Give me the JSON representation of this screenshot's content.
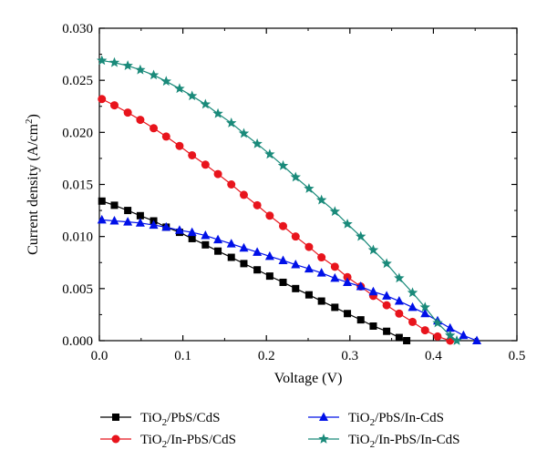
{
  "chart_data": {
    "type": "line",
    "title": "",
    "xlabel": "Voltage (V)",
    "ylabel": {
      "main": "Current density (A/cm",
      "sup": "2",
      "end": ")"
    },
    "xlim": [
      0,
      0.5
    ],
    "ylim": [
      0,
      0.03
    ],
    "xticks": [
      0,
      0.1,
      0.2,
      0.3,
      0.4,
      0.5
    ],
    "xtick_labels": [
      "0.0",
      "0.1",
      "0.2",
      "0.3",
      "0.4",
      "0.5"
    ],
    "yticks": [
      0,
      0.005,
      0.01,
      0.015,
      0.02,
      0.025,
      0.03
    ],
    "ytick_labels": [
      "0.000",
      "0.005",
      "0.010",
      "0.015",
      "0.020",
      "0.025",
      "0.030"
    ],
    "grid": false,
    "legend_placement": "below",
    "series": [
      {
        "name": "TiO2/PbS/CdS",
        "label_parts": [
          "TiO",
          "2",
          "/PbS/CdS"
        ],
        "color": "#000000",
        "marker": "square",
        "x": [
          0.003,
          0.018,
          0.034,
          0.049,
          0.065,
          0.08,
          0.096,
          0.111,
          0.127,
          0.142,
          0.158,
          0.173,
          0.189,
          0.204,
          0.22,
          0.235,
          0.251,
          0.266,
          0.282,
          0.297,
          0.313,
          0.328,
          0.344,
          0.359,
          0.368
        ],
        "y": [
          0.0134,
          0.013,
          0.0125,
          0.012,
          0.0115,
          0.0109,
          0.0104,
          0.0098,
          0.0092,
          0.0086,
          0.008,
          0.0074,
          0.0068,
          0.0062,
          0.0056,
          0.005,
          0.0044,
          0.0038,
          0.0032,
          0.0026,
          0.002,
          0.0014,
          0.0009,
          0.0003,
          0.0
        ]
      },
      {
        "name": "TiO2/In-PbS/CdS",
        "label_parts": [
          "TiO",
          "2",
          "/In-PbS/CdS"
        ],
        "color": "#e8141c",
        "marker": "circle",
        "x": [
          0.003,
          0.018,
          0.034,
          0.049,
          0.065,
          0.08,
          0.096,
          0.111,
          0.127,
          0.142,
          0.158,
          0.173,
          0.189,
          0.204,
          0.22,
          0.235,
          0.251,
          0.266,
          0.282,
          0.297,
          0.313,
          0.328,
          0.344,
          0.359,
          0.375,
          0.39,
          0.405,
          0.42
        ],
        "y": [
          0.0232,
          0.0226,
          0.0219,
          0.0212,
          0.0204,
          0.0196,
          0.0187,
          0.0178,
          0.0169,
          0.016,
          0.015,
          0.014,
          0.013,
          0.012,
          0.011,
          0.01,
          0.009,
          0.008,
          0.0071,
          0.0061,
          0.0052,
          0.0043,
          0.0034,
          0.0026,
          0.0018,
          0.001,
          0.0004,
          0.0
        ]
      },
      {
        "name": "TiO2/PbS/In-CdS",
        "label_parts": [
          "TiO",
          "2",
          "/PbS/In-CdS"
        ],
        "color": "#0010e8",
        "marker": "triangle",
        "x": [
          0.003,
          0.018,
          0.034,
          0.049,
          0.065,
          0.08,
          0.096,
          0.111,
          0.127,
          0.142,
          0.158,
          0.173,
          0.189,
          0.204,
          0.22,
          0.235,
          0.251,
          0.266,
          0.282,
          0.297,
          0.313,
          0.328,
          0.344,
          0.359,
          0.375,
          0.39,
          0.405,
          0.42,
          0.436,
          0.452
        ],
        "y": [
          0.0116,
          0.0115,
          0.0114,
          0.0113,
          0.0111,
          0.0109,
          0.0106,
          0.0104,
          0.0101,
          0.0097,
          0.0093,
          0.0089,
          0.0085,
          0.0081,
          0.0077,
          0.0073,
          0.0069,
          0.0065,
          0.006,
          0.0056,
          0.0052,
          0.0047,
          0.0043,
          0.0038,
          0.0032,
          0.0026,
          0.0019,
          0.0012,
          0.0005,
          0.0
        ]
      },
      {
        "name": "TiO2/In-PbS/In-CdS",
        "label_parts": [
          "TiO",
          "2",
          "/In-PbS/In-CdS"
        ],
        "color": "#1a8a7a",
        "marker": "star",
        "x": [
          0.003,
          0.018,
          0.034,
          0.049,
          0.065,
          0.08,
          0.096,
          0.111,
          0.127,
          0.142,
          0.158,
          0.173,
          0.189,
          0.204,
          0.22,
          0.235,
          0.251,
          0.266,
          0.282,
          0.297,
          0.313,
          0.328,
          0.344,
          0.359,
          0.375,
          0.39,
          0.405,
          0.42,
          0.428
        ],
        "y": [
          0.0269,
          0.0267,
          0.0264,
          0.026,
          0.0255,
          0.0249,
          0.0242,
          0.0235,
          0.0227,
          0.0218,
          0.0209,
          0.0199,
          0.0189,
          0.0179,
          0.0168,
          0.0157,
          0.0146,
          0.0135,
          0.0124,
          0.0112,
          0.01,
          0.0087,
          0.0074,
          0.006,
          0.0046,
          0.0032,
          0.0017,
          0.0005,
          0.0
        ]
      }
    ]
  }
}
